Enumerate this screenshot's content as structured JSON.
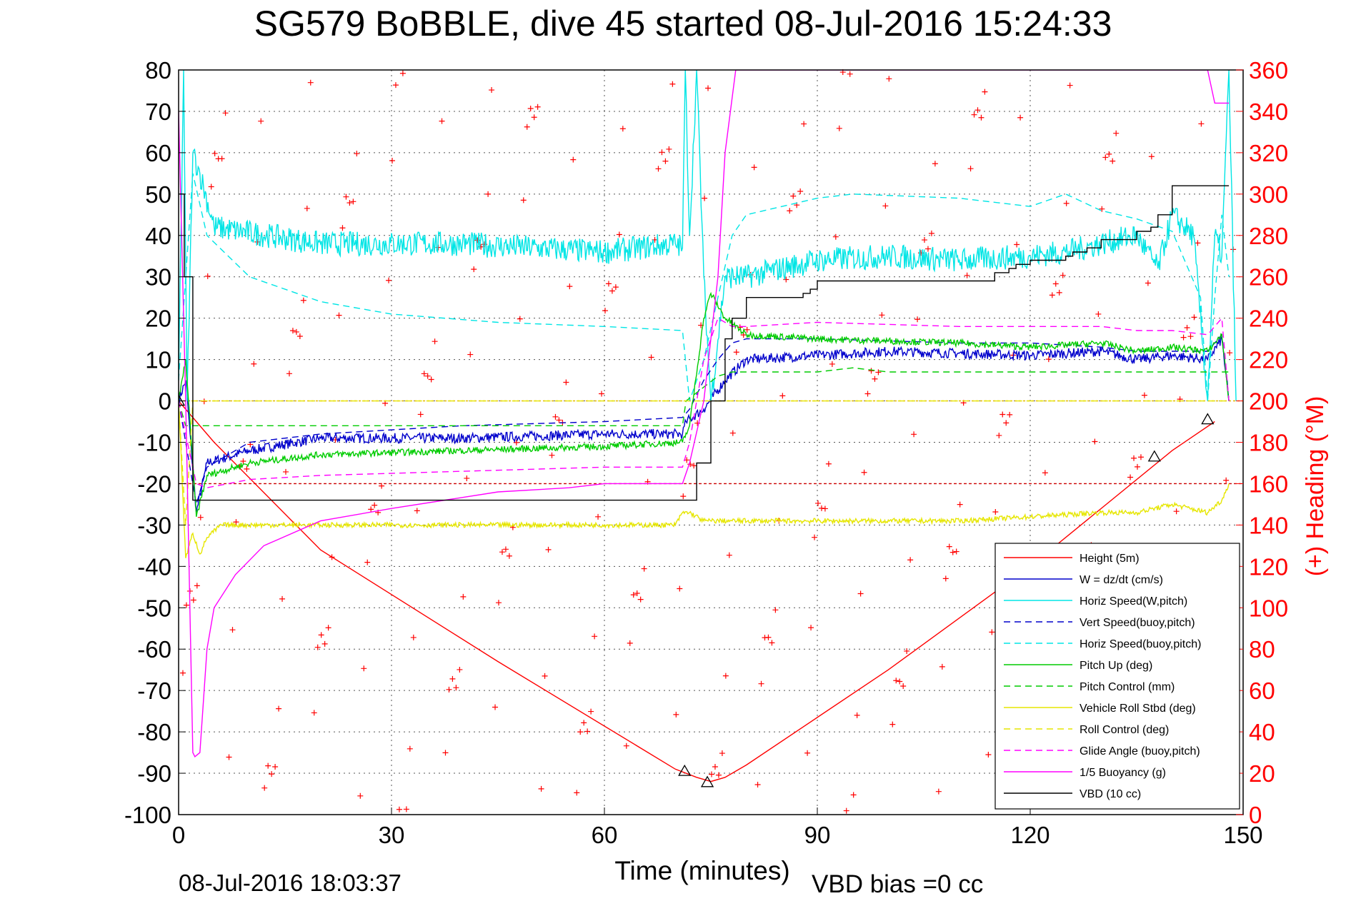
{
  "chart_data": {
    "type": "line",
    "title": "SG579 BoBBLE, dive 45 started 08-Jul-2016 15:24:33",
    "xlabel": "Time (minutes)",
    "ylabel_right": "(+) Heading (°M)",
    "footer_left": "08-Jul-2016 18:03:37",
    "footer_right": "VBD bias =0 cc",
    "xlim": [
      0,
      150
    ],
    "ylim": [
      -100,
      80
    ],
    "y2lim": [
      0,
      360
    ],
    "xticks": [
      "0",
      "30",
      "60",
      "90",
      "120",
      "150"
    ],
    "yticks": [
      "80",
      "70",
      "60",
      "50",
      "40",
      "30",
      "20",
      "10",
      "0",
      "-10",
      "-20",
      "-30",
      "-40",
      "-50",
      "-60",
      "-70",
      "-80",
      "-90",
      "-100"
    ],
    "y2ticks": [
      "360",
      "340",
      "320",
      "300",
      "280",
      "260",
      "240",
      "220",
      "200",
      "180",
      "160",
      "140",
      "120",
      "100",
      "80",
      "60",
      "40",
      "20",
      "0"
    ],
    "grid": true,
    "legend_position": "bottom-right",
    "colors": {
      "red": "#ff0000",
      "blue": "#0000cc",
      "cyan": "#00e5e5",
      "green": "#00cc00",
      "yellow": "#e6e600",
      "magenta": "#ff00ff",
      "black": "#000000"
    },
    "series": [
      {
        "name": "Height (5m)",
        "color": "#ff0000",
        "style": "solid",
        "x": [
          0,
          5,
          20,
          45,
          70,
          73,
          75,
          77,
          80,
          100,
          120,
          140,
          146
        ],
        "y": [
          0,
          -10,
          -36,
          -63,
          -89,
          -91,
          -92,
          -91,
          -88,
          -65,
          -40,
          -12,
          -5
        ]
      },
      {
        "name": "W = dz/dt (cm/s)",
        "color": "#0000cc",
        "style": "solid",
        "noise": 1.2,
        "x": [
          0,
          1,
          2.5,
          4,
          10,
          20,
          40,
          60,
          71,
          71.5,
          74,
          77,
          80,
          90,
          100,
          120,
          130,
          135,
          140,
          145,
          147,
          148
        ],
        "y": [
          0,
          5,
          -27,
          -15,
          -12,
          -9,
          -9,
          -8,
          -8,
          -5,
          -2,
          5,
          10,
          11,
          12,
          11,
          12,
          10,
          11,
          10,
          15,
          0
        ]
      },
      {
        "name": "Horiz Speed(W,pitch)",
        "color": "#00e5e5",
        "style": "solid",
        "noise": 3,
        "x": [
          0,
          0.7,
          1.2,
          2,
          3,
          5,
          20,
          40,
          60,
          70,
          71,
          71.4,
          72,
          73,
          74,
          75,
          77,
          80,
          90,
          100,
          110,
          120,
          125,
          130,
          135,
          138,
          140,
          143,
          145,
          146,
          147,
          148,
          149
        ],
        "y": [
          5,
          80,
          0,
          60,
          55,
          42,
          38,
          38,
          36,
          38,
          37,
          80,
          40,
          80,
          30,
          0,
          30,
          30,
          34,
          35,
          34,
          35,
          36,
          38,
          40,
          32,
          45,
          40,
          0,
          40,
          35,
          80,
          0
        ]
      },
      {
        "name": "Vert Speed(buoy,pitch)",
        "color": "#0000cc",
        "style": "dashed",
        "x": [
          0,
          2.5,
          4,
          10,
          20,
          40,
          60,
          71,
          72,
          74,
          76,
          78,
          80,
          90,
          110,
          120,
          130,
          135,
          140,
          145,
          147,
          148
        ],
        "y": [
          0,
          -25,
          -16,
          -10,
          -8,
          -6,
          -5,
          -4,
          -2,
          5,
          10,
          14,
          15,
          15,
          14,
          14,
          13,
          12,
          12,
          12,
          16,
          0
        ]
      },
      {
        "name": "Horiz Speed(buoy,pitch)",
        "color": "#00e5e5",
        "style": "dashed",
        "x": [
          0,
          2,
          4,
          10,
          20,
          30,
          45,
          60,
          71,
          72,
          74,
          76,
          78,
          80,
          90,
          95,
          110,
          120,
          125,
          130,
          135,
          140,
          144,
          145,
          146,
          147,
          148
        ],
        "y": [
          5,
          55,
          40,
          30,
          24,
          21,
          19,
          18,
          17,
          0,
          10,
          25,
          40,
          45,
          49,
          50,
          49,
          47,
          50,
          46,
          44,
          41,
          25,
          0,
          25,
          45,
          30
        ]
      },
      {
        "name": "Pitch Up (deg)",
        "color": "#00cc00",
        "style": "solid",
        "noise": 0.8,
        "x": [
          0,
          1,
          2.5,
          4,
          10,
          20,
          40,
          60,
          71,
          72,
          74,
          75,
          77,
          80,
          90,
          110,
          120,
          130,
          135,
          140,
          145,
          147,
          148
        ],
        "y": [
          0,
          10,
          -28,
          -18,
          -15,
          -13,
          -12,
          -11,
          -10,
          -6,
          20,
          26,
          20,
          16,
          15,
          14,
          13,
          14,
          12,
          13,
          12,
          16,
          0
        ]
      },
      {
        "name": "Pitch Control (mm)",
        "color": "#00cc00",
        "style": "dashed",
        "x": [
          0,
          1,
          2,
          60,
          71,
          71.5,
          76,
          78,
          90,
          95,
          100,
          148
        ],
        "y": [
          0,
          -6,
          -6,
          -6,
          -6,
          0,
          6,
          7,
          7,
          8,
          7,
          7
        ]
      },
      {
        "name": "Vehicle Roll Stbd (deg)",
        "color": "#e6e600",
        "style": "solid",
        "noise": 0.6,
        "x": [
          0,
          1,
          2,
          3,
          4,
          6,
          20,
          40,
          60,
          70,
          71,
          72,
          74,
          78,
          90,
          110,
          120,
          130,
          135,
          140,
          145,
          147,
          148
        ],
        "y": [
          0,
          -38,
          -32,
          -37,
          -33,
          -30,
          -30,
          -30,
          -30,
          -30,
          -27,
          -27,
          -29,
          -29,
          -29,
          -29,
          -28,
          -27,
          -27,
          -25,
          -27,
          -24,
          -20
        ]
      },
      {
        "name": "Roll Control (deg)",
        "color": "#e6e600",
        "style": "dashed",
        "x": [
          0,
          1,
          2,
          148
        ],
        "y": [
          0,
          -30,
          0,
          0
        ]
      },
      {
        "name": "Glide Angle (buoy,pitch)",
        "color": "#ff00ff",
        "style": "dashed",
        "x": [
          0,
          2.5,
          4,
          10,
          20,
          40,
          60,
          71,
          72,
          74,
          76,
          78,
          80,
          90,
          110,
          120,
          130,
          135,
          140,
          145,
          147,
          148
        ],
        "y": [
          0,
          -20,
          -21,
          -19,
          -18,
          -17,
          -16,
          -16,
          -10,
          10,
          20,
          18,
          18,
          19,
          18,
          18,
          18,
          17,
          17,
          16,
          20,
          0
        ]
      },
      {
        "name": "1/5 Buoyancy (g)",
        "color": "#ff00ff",
        "style": "solid",
        "x": [
          0,
          1,
          2,
          2.3,
          3,
          4,
          5,
          8,
          12,
          20,
          30,
          45,
          55,
          60,
          65,
          71,
          72,
          74,
          76,
          77,
          78.5,
          145,
          146,
          147,
          148
        ],
        "y": [
          70,
          0,
          -85,
          -86,
          -85,
          -60,
          -50,
          -42,
          -35,
          -29,
          -26,
          -22,
          -21,
          -20,
          -20,
          -20,
          -15,
          0,
          30,
          60,
          80,
          80,
          72,
          72,
          72
        ]
      },
      {
        "name": "VBD (10 cc)",
        "color": "#000000",
        "style": "solid",
        "step": true,
        "x": [
          0,
          0.8,
          2,
          3,
          50,
          50.5,
          70,
          71.5,
          73,
          75,
          77,
          78,
          80,
          82,
          87,
          88,
          89,
          90,
          110,
          114,
          115,
          117,
          118,
          120,
          122,
          125,
          126,
          128,
          130,
          133,
          135,
          137,
          138,
          140,
          145,
          148
        ],
        "y": [
          50,
          30,
          -24,
          -24,
          -24,
          -24,
          -24,
          -24,
          -15,
          0,
          15,
          20,
          25,
          25,
          25,
          26,
          27,
          29,
          29,
          29,
          31,
          32,
          33,
          34,
          34,
          35,
          36,
          37,
          39,
          39,
          41,
          42,
          45,
          52,
          52,
          52
        ]
      }
    ],
    "heading": {
      "color": "#ff0000",
      "marker": "+",
      "sample_interval_min": 0.5
    }
  }
}
